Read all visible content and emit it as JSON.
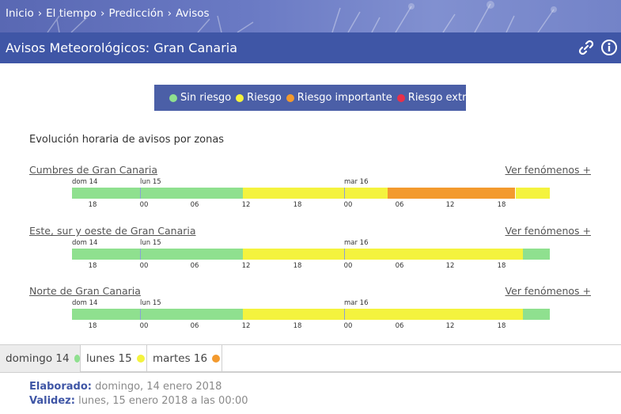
{
  "breadcrumb": [
    "Inicio",
    "El tiempo",
    "Predicción",
    "Avisos"
  ],
  "breadcrumb_sep": "›",
  "title": "Avisos Meteorológicos: Gran Canaria",
  "icons": {
    "link": "link-icon",
    "info": "info-icon"
  },
  "legend": [
    {
      "label": "Sin riesgo",
      "color": "#8fe08f"
    },
    {
      "label": "Riesgo",
      "color": "#f4f33e"
    },
    {
      "label": "Riesgo importante",
      "color": "#f39a2e"
    },
    {
      "label": "Riesgo extremo",
      "color": "#e8304a"
    }
  ],
  "section_title": "Evolución horaria de avisos por zonas",
  "timeline": {
    "days": [
      "dom 14",
      "lun 15",
      "mar 16"
    ],
    "hours": [
      "18",
      "00",
      "06",
      "12",
      "18",
      "00",
      "06",
      "12",
      "18"
    ]
  },
  "zones": [
    {
      "name": "Cumbres de Gran Canaria",
      "link": "Ver fenómenos +",
      "levels": [
        [
          "Sin riesgo",
          0,
          0.357
        ],
        [
          "Riesgo",
          0.357,
          0.66
        ],
        [
          "Riesgo importante",
          0.66,
          0.928
        ],
        [
          "Riesgo",
          0.928,
          1
        ]
      ]
    },
    {
      "name": "Este, sur y oeste de Gran Canaria",
      "link": "Ver fenómenos +",
      "levels": [
        [
          "Sin riesgo",
          0,
          0.357
        ],
        [
          "Riesgo",
          0.357,
          0.944
        ],
        [
          "Sin riesgo",
          0.944,
          1
        ]
      ]
    },
    {
      "name": "Norte de Gran Canaria",
      "link": "Ver fenómenos +",
      "levels": [
        [
          "Sin riesgo",
          0,
          0.357
        ],
        [
          "Riesgo",
          0.357,
          0.944
        ],
        [
          "Sin riesgo",
          0.944,
          1
        ]
      ]
    }
  ],
  "day_tabs": [
    {
      "label": "domingo 14",
      "color": "#8fe08f",
      "active": true
    },
    {
      "label": "lunes 15",
      "color": "#f4f33e",
      "active": false
    },
    {
      "label": "martes 16",
      "color": "#f39a2e",
      "active": false
    }
  ],
  "elaborado_label": "Elaborado:",
  "elaborado_value": "domingo, 14 enero 2018",
  "validez_label": "Validez:",
  "validez_value": "lunes, 15 enero 2018 a las 00:00"
}
